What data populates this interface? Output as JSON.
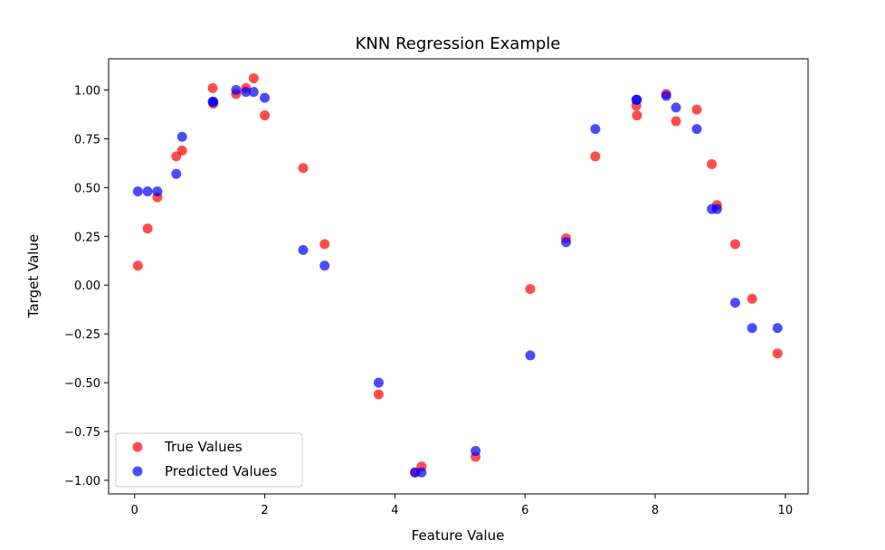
{
  "chart_data": {
    "type": "scatter",
    "title": "KNN Regression Example",
    "xlabel": "Feature Value",
    "ylabel": "Target Value",
    "xlim": [
      -0.4,
      10.35
    ],
    "ylim": [
      -1.07,
      1.16
    ],
    "xticks": [
      0,
      2,
      4,
      6,
      8,
      10
    ],
    "xtick_labels": [
      "0",
      "2",
      "4",
      "6",
      "8",
      "10"
    ],
    "yticks": [
      -1.0,
      -0.75,
      -0.5,
      -0.25,
      0.0,
      0.25,
      0.5,
      0.75,
      1.0
    ],
    "ytick_labels": [
      "−1.00",
      "−0.75",
      "−0.50",
      "−0.25",
      "0.00",
      "0.25",
      "0.50",
      "0.75",
      "1.00"
    ],
    "grid": false,
    "legend_position": "lower-left",
    "series": [
      {
        "name": "True Values",
        "color": "#ff0000",
        "points": [
          [
            0.05,
            0.1
          ],
          [
            0.2,
            0.29
          ],
          [
            0.35,
            0.45
          ],
          [
            0.64,
            0.66
          ],
          [
            0.73,
            0.69
          ],
          [
            1.2,
            1.01
          ],
          [
            1.21,
            0.93
          ],
          [
            1.56,
            0.98
          ],
          [
            1.71,
            1.01
          ],
          [
            1.83,
            1.06
          ],
          [
            2.0,
            0.87
          ],
          [
            2.59,
            0.6
          ],
          [
            2.92,
            0.21
          ],
          [
            3.75,
            -0.56
          ],
          [
            4.31,
            -0.96
          ],
          [
            4.41,
            -0.93
          ],
          [
            5.24,
            -0.88
          ],
          [
            6.08,
            -0.02
          ],
          [
            6.63,
            0.24
          ],
          [
            7.08,
            0.66
          ],
          [
            7.71,
            0.92
          ],
          [
            7.72,
            0.87
          ],
          [
            8.17,
            0.98
          ],
          [
            8.32,
            0.84
          ],
          [
            8.64,
            0.9
          ],
          [
            8.87,
            0.62
          ],
          [
            8.95,
            0.41
          ],
          [
            9.23,
            0.21
          ],
          [
            9.49,
            -0.07
          ],
          [
            9.88,
            -0.35
          ]
        ]
      },
      {
        "name": "Predicted Values",
        "color": "#0000ff",
        "points": [
          [
            0.05,
            0.48
          ],
          [
            0.2,
            0.48
          ],
          [
            0.35,
            0.48
          ],
          [
            0.64,
            0.57
          ],
          [
            0.73,
            0.76
          ],
          [
            1.2,
            0.94
          ],
          [
            1.21,
            0.94
          ],
          [
            1.56,
            1.0
          ],
          [
            1.71,
            0.99
          ],
          [
            1.83,
            0.99
          ],
          [
            2.0,
            0.96
          ],
          [
            2.59,
            0.18
          ],
          [
            2.92,
            0.1
          ],
          [
            3.75,
            -0.5
          ],
          [
            4.31,
            -0.96
          ],
          [
            4.41,
            -0.96
          ],
          [
            5.24,
            -0.85
          ],
          [
            6.08,
            -0.36
          ],
          [
            6.63,
            0.22
          ],
          [
            7.08,
            0.8
          ],
          [
            7.71,
            0.95
          ],
          [
            7.72,
            0.95
          ],
          [
            8.17,
            0.97
          ],
          [
            8.32,
            0.91
          ],
          [
            8.64,
            0.8
          ],
          [
            8.87,
            0.39
          ],
          [
            8.95,
            0.39
          ],
          [
            9.23,
            -0.09
          ],
          [
            9.49,
            -0.22
          ],
          [
            9.88,
            -0.22
          ]
        ]
      }
    ]
  }
}
